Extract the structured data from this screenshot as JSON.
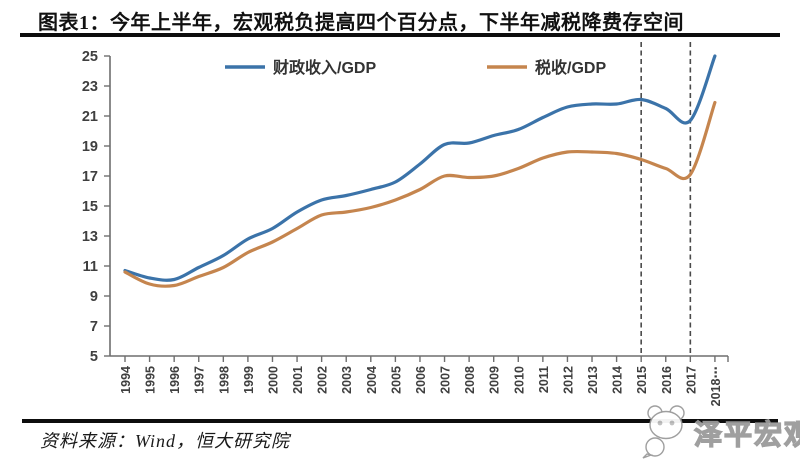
{
  "header": {
    "title": "图表1：今年上半年，宏观税负提高四个百分点，下半年减税降费存空间"
  },
  "footer": {
    "source": "资料来源：Wind，恒大研究院",
    "watermark": "泽平宏观"
  },
  "colors": {
    "fiscal_line": "#3B73A9",
    "tax_line": "#C5854E",
    "axis": "#6e6e6e",
    "tick_label": "#3f3f3f",
    "dashed_line": "#4a4a4a",
    "legend_text": "#333333"
  },
  "chart_data": {
    "type": "line",
    "title": "",
    "xlabel": "",
    "ylabel": "",
    "categories": [
      "1994",
      "1995",
      "1996",
      "1997",
      "1998",
      "1999",
      "2000",
      "2001",
      "2002",
      "2003",
      "2004",
      "2005",
      "2006",
      "2007",
      "2008",
      "2009",
      "2010",
      "2011",
      "2012",
      "2013",
      "2014",
      "2015",
      "2016",
      "2017",
      "2018⋯"
    ],
    "series": [
      {
        "name": "财政收入/GDP",
        "color": "#3B73A9",
        "values": [
          10.7,
          10.2,
          10.1,
          10.9,
          11.7,
          12.8,
          13.5,
          14.6,
          15.4,
          15.7,
          16.1,
          16.6,
          17.8,
          19.1,
          19.2,
          19.7,
          20.1,
          20.9,
          21.6,
          21.8,
          21.8,
          22.1,
          21.5,
          20.7,
          25.0
        ]
      },
      {
        "name": "税收/GDP",
        "color": "#C5854E",
        "values": [
          10.6,
          9.8,
          9.7,
          10.3,
          10.9,
          11.9,
          12.6,
          13.5,
          14.4,
          14.6,
          14.9,
          15.4,
          16.1,
          17.0,
          16.9,
          17.0,
          17.5,
          18.2,
          18.6,
          18.6,
          18.5,
          18.1,
          17.5,
          17.1,
          21.9
        ]
      }
    ],
    "ylim": [
      5,
      25
    ],
    "ytick_step": 2,
    "yticks": [
      5,
      7,
      9,
      11,
      13,
      15,
      17,
      19,
      21,
      23,
      25
    ],
    "vlines": [
      "2015",
      "2017"
    ],
    "grid": false,
    "legend_position": "top-inside"
  }
}
